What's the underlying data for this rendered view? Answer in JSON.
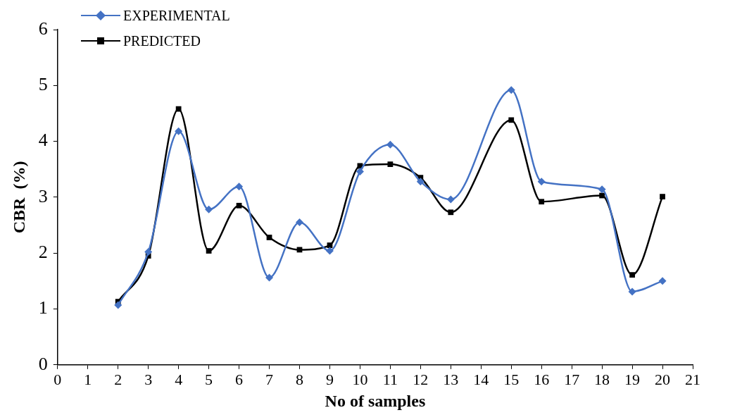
{
  "chart_data": {
    "type": "line",
    "xlabel": "No of samples",
    "ylabel": "CBR  (%)",
    "x": [
      2,
      3,
      4,
      5,
      6,
      7,
      8,
      9,
      10,
      11,
      12,
      13,
      15,
      16,
      18,
      19,
      20
    ],
    "series": [
      {
        "name": "EXPERIMENTAL",
        "color": "#4472c4",
        "marker": "diamond",
        "values": [
          1.07,
          2.02,
          4.18,
          2.78,
          3.19,
          1.56,
          2.55,
          2.04,
          3.46,
          3.94,
          3.28,
          2.96,
          4.92,
          3.28,
          3.14,
          1.31,
          1.5
        ]
      },
      {
        "name": "PREDICTED",
        "color": "#000000",
        "marker": "square",
        "values": [
          1.13,
          1.95,
          4.58,
          2.04,
          2.85,
          2.28,
          2.06,
          2.14,
          3.56,
          3.59,
          3.35,
          2.73,
          4.38,
          2.92,
          3.03,
          1.61,
          3.01
        ]
      }
    ],
    "xlim": [
      0,
      21
    ],
    "xticks": [
      0,
      1,
      2,
      3,
      4,
      5,
      6,
      7,
      8,
      9,
      10,
      11,
      12,
      13,
      14,
      15,
      16,
      17,
      18,
      19,
      20,
      21
    ],
    "ylim": [
      0,
      6
    ],
    "yticks": [
      0,
      1,
      2,
      3,
      4,
      5,
      6
    ],
    "grid": false,
    "legend": "top left",
    "line_style": "solid"
  }
}
